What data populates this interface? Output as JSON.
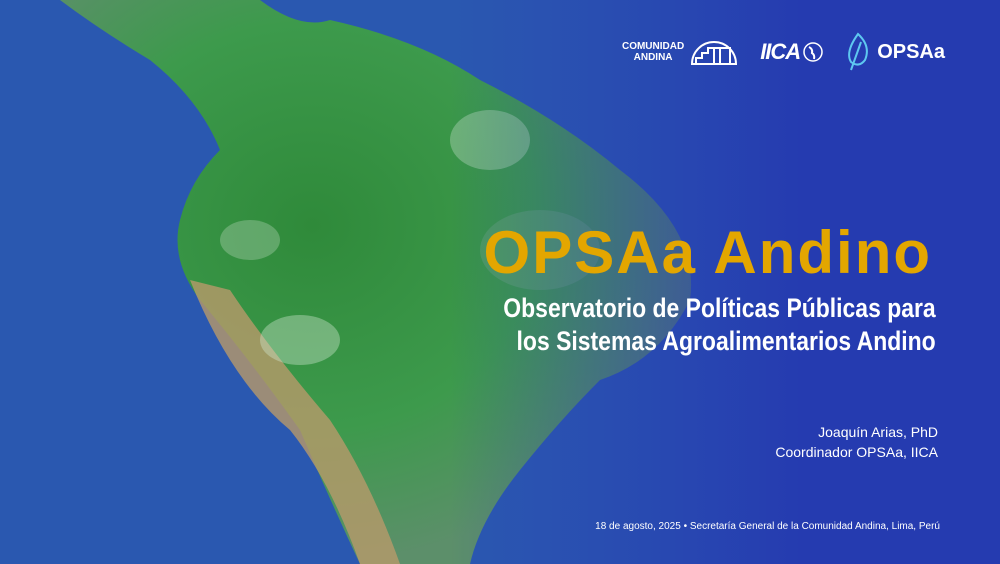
{
  "logos": {
    "comunidad_andina": [
      "COMUNIDAD",
      "ANDINA"
    ],
    "iica": "IICA",
    "opsaa": "OPSAa"
  },
  "title": "OPSAa Andino",
  "subtitle": [
    "Observatorio de Políticas Públicas para",
    "los Sistemas Agroalimentarios Andino"
  ],
  "author": {
    "name": "Joaquín Arias, PhD",
    "role": "Coordinador OPSAa, IICA"
  },
  "footer": "18 de agosto, 2025 • Secretaría General de la Comunidad Andina, Lima, Perú",
  "colors": {
    "title": "#e3a600",
    "background": "#2436b0",
    "land": "#3f9a4a"
  }
}
